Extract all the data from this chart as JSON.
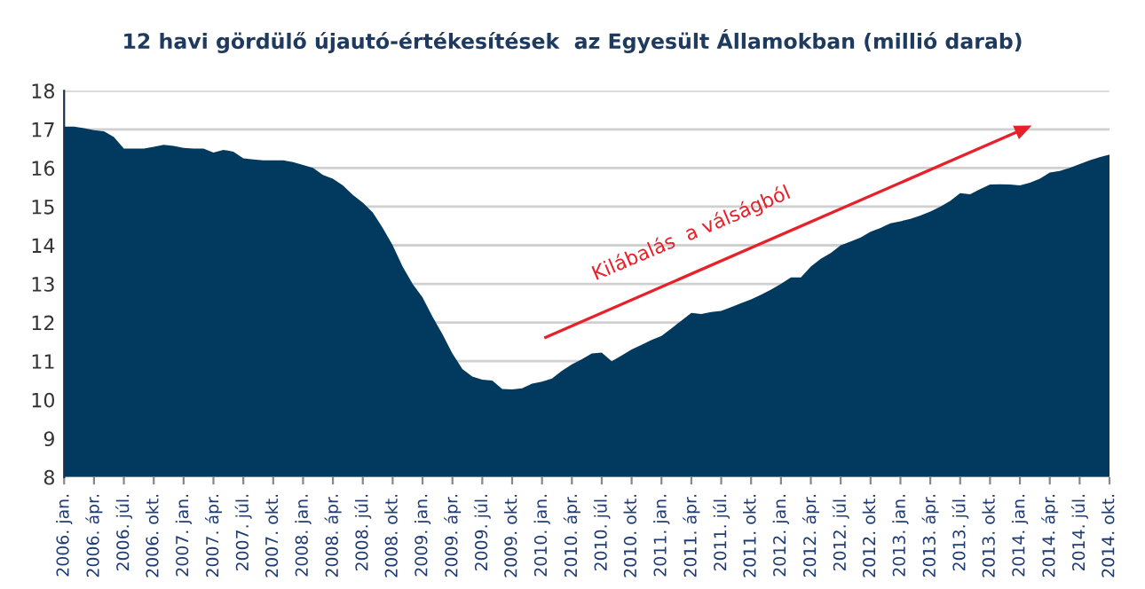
{
  "chart_data": {
    "type": "area",
    "title": "12 havi gördülő újautó-értékesítések  az Egyesült Államokban (millió darab)",
    "categories": [
      "2006. jan.",
      null,
      null,
      "2006. ápr.",
      null,
      null,
      "2006. júl.",
      null,
      null,
      "2006. okt.",
      null,
      null,
      "2007. jan.",
      null,
      null,
      "2007. ápr.",
      null,
      null,
      "2007. júl.",
      null,
      null,
      "2007. okt.",
      null,
      null,
      "2008. jan.",
      null,
      null,
      "2008. ápr.",
      null,
      null,
      "2008. júl.",
      null,
      null,
      "2008. okt.",
      null,
      null,
      "2009. jan.",
      null,
      null,
      "2009. ápr.",
      null,
      null,
      "2009. júl.",
      null,
      null,
      "2009. okt.",
      null,
      null,
      "2010. jan.",
      null,
      null,
      "2010. ápr.",
      null,
      null,
      "2010. júl.",
      null,
      null,
      "2010. okt.",
      null,
      null,
      "2011. jan.",
      null,
      null,
      "2011. ápr.",
      null,
      null,
      "2011. júl.",
      null,
      null,
      "2011. okt.",
      null,
      null,
      "2012. jan.",
      null,
      null,
      "2012. ápr.",
      null,
      null,
      "2012. júl.",
      null,
      null,
      "2012. okt.",
      null,
      null,
      "2013. jan.",
      null,
      null,
      "2013. ápr.",
      null,
      null,
      "2013. júl.",
      null,
      null,
      "2013. okt.",
      null,
      null,
      "2014. jan.",
      null,
      null,
      "2014. ápr.",
      null,
      null,
      "2014. júl.",
      null,
      null,
      "2014. okt."
    ],
    "series": [
      {
        "color": "#023a5f",
        "values": [
          17.07,
          17.07,
          17.03,
          16.98,
          16.95,
          16.8,
          16.5,
          16.5,
          16.5,
          16.55,
          16.6,
          16.57,
          16.52,
          16.5,
          16.5,
          16.4,
          16.47,
          16.42,
          16.25,
          16.22,
          16.2,
          16.2,
          16.2,
          16.15,
          16.08,
          16.0,
          15.82,
          15.72,
          15.55,
          15.3,
          15.1,
          14.85,
          14.45,
          14.0,
          13.45,
          13.0,
          12.65,
          12.15,
          11.7,
          11.2,
          10.8,
          10.6,
          10.52,
          10.5,
          10.28,
          10.27,
          10.3,
          10.42,
          10.47,
          10.55,
          10.75,
          10.92,
          11.05,
          11.2,
          11.22,
          11.0,
          11.15,
          11.3,
          11.42,
          11.55,
          11.65,
          11.85,
          12.05,
          12.25,
          12.22,
          12.27,
          12.3,
          12.4,
          12.5,
          12.6,
          12.72,
          12.85,
          13.0,
          13.17,
          13.17,
          13.45,
          13.65,
          13.8,
          14.0,
          14.1,
          14.2,
          14.35,
          14.45,
          14.57,
          14.62,
          14.68,
          14.77,
          14.87,
          15.0,
          15.15,
          15.35,
          15.32,
          15.45,
          15.57,
          15.58,
          15.57,
          15.55,
          15.62,
          15.72,
          15.88,
          15.92,
          16.0,
          16.1,
          16.2,
          16.28,
          16.35
        ]
      }
    ],
    "ylim": [
      8,
      18
    ],
    "yticks": [
      8,
      9,
      10,
      11,
      12,
      13,
      14,
      15,
      16,
      17,
      18
    ],
    "grid": "y",
    "annotations": [
      "Kilábalás  a válságból"
    ]
  }
}
